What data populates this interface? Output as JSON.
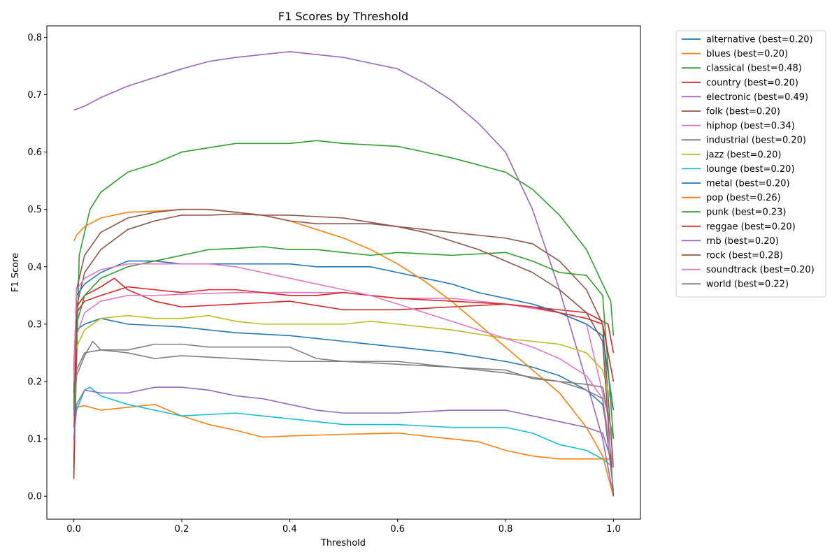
{
  "chart_data": {
    "type": "line",
    "title": "F1 Scores by Threshold",
    "xlabel": "Threshold",
    "ylabel": "F1 Score",
    "xlim": [
      -0.05,
      1.05
    ],
    "ylim": [
      -0.04,
      0.82
    ],
    "xticks": [
      0.0,
      0.2,
      0.4,
      0.6,
      0.8,
      1.0
    ],
    "xtick_labels": [
      "0.0",
      "0.2",
      "0.4",
      "0.6",
      "0.8",
      "1.0"
    ],
    "yticks": [
      0.0,
      0.1,
      0.2,
      0.3,
      0.4,
      0.5,
      0.6,
      0.7,
      0.8
    ],
    "ytick_labels": [
      "0.0",
      "0.1",
      "0.2",
      "0.3",
      "0.4",
      "0.5",
      "0.6",
      "0.7",
      "0.8"
    ],
    "grid": false,
    "legend_placement": "outside-top-right",
    "series": [
      {
        "name": "alternative (best=0.20)",
        "color": "#1f77b4",
        "x": [
          0.0,
          0.005,
          0.02,
          0.05,
          0.1,
          0.2,
          0.3,
          0.4,
          0.5,
          0.6,
          0.7,
          0.8,
          0.85,
          0.9,
          0.95,
          0.98,
          1.0
        ],
        "y": [
          0.15,
          0.29,
          0.3,
          0.31,
          0.3,
          0.295,
          0.285,
          0.28,
          0.27,
          0.26,
          0.25,
          0.235,
          0.225,
          0.21,
          0.185,
          0.16,
          0.05
        ]
      },
      {
        "name": "blues (best=0.20)",
        "color": "#ff7f0e",
        "x": [
          0.0,
          0.005,
          0.02,
          0.05,
          0.1,
          0.15,
          0.2,
          0.25,
          0.3,
          0.35,
          0.4,
          0.5,
          0.6,
          0.7,
          0.75,
          0.8,
          0.85,
          0.9,
          1.0
        ],
        "y": [
          0.15,
          0.155,
          0.158,
          0.15,
          0.155,
          0.16,
          0.14,
          0.125,
          0.115,
          0.103,
          0.105,
          0.108,
          0.11,
          0.1,
          0.095,
          0.08,
          0.07,
          0.065,
          0.065
        ]
      },
      {
        "name": "classical (best=0.48)",
        "color": "#2ca02c",
        "x": [
          0.0,
          0.01,
          0.03,
          0.05,
          0.1,
          0.15,
          0.2,
          0.3,
          0.4,
          0.45,
          0.5,
          0.6,
          0.7,
          0.8,
          0.85,
          0.9,
          0.95,
          0.98,
          0.995,
          1.0
        ],
        "y": [
          0.04,
          0.42,
          0.5,
          0.53,
          0.565,
          0.58,
          0.6,
          0.615,
          0.615,
          0.62,
          0.615,
          0.61,
          0.59,
          0.565,
          0.535,
          0.49,
          0.43,
          0.37,
          0.34,
          0.28
        ]
      },
      {
        "name": "country (best=0.20)",
        "color": "#d62728",
        "x": [
          0.0,
          0.005,
          0.02,
          0.05,
          0.075,
          0.1,
          0.15,
          0.2,
          0.3,
          0.4,
          0.5,
          0.6,
          0.7,
          0.8,
          0.9,
          0.95,
          0.99,
          1.0
        ],
        "y": [
          0.05,
          0.33,
          0.35,
          0.365,
          0.38,
          0.36,
          0.34,
          0.33,
          0.335,
          0.34,
          0.325,
          0.325,
          0.33,
          0.335,
          0.325,
          0.32,
          0.3,
          0.25
        ]
      },
      {
        "name": "electronic (best=0.49)",
        "color": "#9467bd",
        "x": [
          0.0,
          0.02,
          0.05,
          0.1,
          0.15,
          0.2,
          0.25,
          0.3,
          0.35,
          0.4,
          0.45,
          0.5,
          0.55,
          0.6,
          0.65,
          0.7,
          0.75,
          0.8,
          0.85,
          0.9,
          0.95,
          0.98,
          1.0
        ],
        "y": [
          0.673,
          0.68,
          0.695,
          0.715,
          0.73,
          0.745,
          0.758,
          0.765,
          0.77,
          0.775,
          0.77,
          0.765,
          0.755,
          0.745,
          0.72,
          0.69,
          0.65,
          0.6,
          0.5,
          0.36,
          0.2,
          0.1,
          0.0
        ]
      },
      {
        "name": "folk (best=0.20)",
        "color": "#8c564b",
        "x": [
          0.0,
          0.005,
          0.02,
          0.05,
          0.1,
          0.15,
          0.2,
          0.25,
          0.3,
          0.35,
          0.4,
          0.5,
          0.6,
          0.7,
          0.8,
          0.85,
          0.9,
          0.95,
          0.98,
          1.0
        ],
        "y": [
          0.16,
          0.33,
          0.39,
          0.43,
          0.465,
          0.48,
          0.49,
          0.49,
          0.492,
          0.49,
          0.49,
          0.485,
          0.47,
          0.46,
          0.45,
          0.44,
          0.41,
          0.36,
          0.3,
          0.05
        ]
      },
      {
        "name": "hiphop (best=0.34)",
        "color": "#e377c2",
        "x": [
          0.0,
          0.005,
          0.02,
          0.05,
          0.1,
          0.15,
          0.2,
          0.3,
          0.4,
          0.5,
          0.6,
          0.7,
          0.8,
          0.9,
          0.95,
          1.0
        ],
        "y": [
          0.22,
          0.28,
          0.32,
          0.34,
          0.35,
          0.35,
          0.352,
          0.355,
          0.355,
          0.355,
          0.345,
          0.345,
          0.335,
          0.32,
          0.3,
          0.1
        ]
      },
      {
        "name": "industrial (best=0.20)",
        "color": "#7f7f7f",
        "x": [
          0.0,
          0.005,
          0.02,
          0.05,
          0.1,
          0.15,
          0.2,
          0.3,
          0.4,
          0.5,
          0.6,
          0.7,
          0.8,
          0.9,
          0.95,
          0.98,
          1.0
        ],
        "y": [
          0.12,
          0.22,
          0.25,
          0.255,
          0.25,
          0.24,
          0.245,
          0.24,
          0.235,
          0.235,
          0.23,
          0.225,
          0.215,
          0.2,
          0.195,
          0.19,
          0.1
        ]
      },
      {
        "name": "jazz (best=0.20)",
        "color": "#bcbd22",
        "x": [
          0.0,
          0.005,
          0.02,
          0.05,
          0.1,
          0.15,
          0.2,
          0.25,
          0.3,
          0.35,
          0.4,
          0.45,
          0.5,
          0.55,
          0.6,
          0.7,
          0.8,
          0.85,
          0.9,
          0.95,
          0.98,
          1.0
        ],
        "y": [
          0.24,
          0.26,
          0.29,
          0.31,
          0.315,
          0.31,
          0.31,
          0.315,
          0.305,
          0.3,
          0.3,
          0.3,
          0.3,
          0.305,
          0.3,
          0.29,
          0.275,
          0.27,
          0.265,
          0.25,
          0.22,
          0.15
        ]
      },
      {
        "name": "lounge (best=0.20)",
        "color": "#17becf",
        "x": [
          0.0,
          0.005,
          0.02,
          0.03,
          0.05,
          0.1,
          0.15,
          0.2,
          0.3,
          0.4,
          0.5,
          0.6,
          0.7,
          0.8,
          0.85,
          0.9,
          0.95,
          0.98,
          1.0
        ],
        "y": [
          0.1,
          0.15,
          0.185,
          0.19,
          0.175,
          0.16,
          0.15,
          0.14,
          0.145,
          0.135,
          0.125,
          0.125,
          0.12,
          0.12,
          0.11,
          0.09,
          0.08,
          0.065,
          0.05
        ]
      },
      {
        "name": "metal (best=0.20)",
        "color": "#1f77b4",
        "x": [
          0.0,
          0.005,
          0.02,
          0.05,
          0.1,
          0.15,
          0.2,
          0.25,
          0.3,
          0.35,
          0.4,
          0.45,
          0.5,
          0.55,
          0.6,
          0.65,
          0.7,
          0.75,
          0.8,
          0.85,
          0.9,
          0.95,
          0.98,
          1.0
        ],
        "y": [
          0.22,
          0.35,
          0.37,
          0.39,
          0.41,
          0.41,
          0.405,
          0.405,
          0.405,
          0.405,
          0.405,
          0.4,
          0.4,
          0.4,
          0.39,
          0.38,
          0.37,
          0.355,
          0.345,
          0.335,
          0.32,
          0.3,
          0.28,
          0.15
        ]
      },
      {
        "name": "pop (best=0.26)",
        "color": "#ff7f0e",
        "x": [
          0.0,
          0.005,
          0.02,
          0.05,
          0.1,
          0.15,
          0.2,
          0.25,
          0.3,
          0.35,
          0.4,
          0.45,
          0.5,
          0.55,
          0.6,
          0.65,
          0.7,
          0.75,
          0.8,
          0.85,
          0.9,
          0.95,
          0.98,
          1.0
        ],
        "y": [
          0.445,
          0.455,
          0.47,
          0.485,
          0.495,
          0.497,
          0.5,
          0.5,
          0.495,
          0.49,
          0.48,
          0.465,
          0.45,
          0.43,
          0.405,
          0.375,
          0.34,
          0.3,
          0.26,
          0.22,
          0.18,
          0.12,
          0.07,
          0.0
        ]
      },
      {
        "name": "punk (best=0.23)",
        "color": "#2ca02c",
        "x": [
          0.0,
          0.005,
          0.02,
          0.05,
          0.1,
          0.15,
          0.2,
          0.25,
          0.3,
          0.35,
          0.4,
          0.45,
          0.5,
          0.55,
          0.6,
          0.7,
          0.8,
          0.85,
          0.9,
          0.95,
          0.98,
          1.0
        ],
        "y": [
          0.15,
          0.3,
          0.35,
          0.38,
          0.4,
          0.41,
          0.42,
          0.43,
          0.432,
          0.435,
          0.43,
          0.43,
          0.425,
          0.42,
          0.425,
          0.42,
          0.425,
          0.41,
          0.39,
          0.385,
          0.35,
          0.1
        ]
      },
      {
        "name": "reggae (best=0.20)",
        "color": "#d62728",
        "x": [
          0.0,
          0.005,
          0.02,
          0.05,
          0.1,
          0.15,
          0.2,
          0.25,
          0.3,
          0.35,
          0.4,
          0.45,
          0.5,
          0.55,
          0.6,
          0.7,
          0.8,
          0.85,
          0.9,
          0.95,
          0.98,
          1.0
        ],
        "y": [
          0.03,
          0.32,
          0.34,
          0.35,
          0.365,
          0.36,
          0.355,
          0.36,
          0.36,
          0.355,
          0.35,
          0.35,
          0.355,
          0.35,
          0.345,
          0.34,
          0.335,
          0.33,
          0.32,
          0.31,
          0.3,
          0.2
        ]
      },
      {
        "name": "rnb (best=0.20)",
        "color": "#9467bd",
        "x": [
          0.0,
          0.005,
          0.02,
          0.05,
          0.1,
          0.15,
          0.2,
          0.25,
          0.3,
          0.35,
          0.4,
          0.45,
          0.5,
          0.6,
          0.7,
          0.8,
          0.85,
          0.9,
          0.95,
          0.98,
          1.0
        ],
        "y": [
          0.1,
          0.16,
          0.185,
          0.18,
          0.18,
          0.19,
          0.19,
          0.185,
          0.175,
          0.17,
          0.16,
          0.15,
          0.145,
          0.145,
          0.15,
          0.15,
          0.14,
          0.13,
          0.12,
          0.11,
          0.05
        ]
      },
      {
        "name": "rock (best=0.28)",
        "color": "#8c564b",
        "x": [
          0.0,
          0.005,
          0.02,
          0.05,
          0.1,
          0.15,
          0.2,
          0.25,
          0.3,
          0.35,
          0.4,
          0.45,
          0.5,
          0.55,
          0.6,
          0.65,
          0.7,
          0.75,
          0.8,
          0.85,
          0.9,
          0.95,
          0.98,
          1.0
        ],
        "y": [
          0.18,
          0.36,
          0.42,
          0.46,
          0.485,
          0.495,
          0.5,
          0.5,
          0.495,
          0.49,
          0.48,
          0.475,
          0.475,
          0.475,
          0.47,
          0.46,
          0.445,
          0.43,
          0.41,
          0.39,
          0.36,
          0.32,
          0.27,
          0.0
        ]
      },
      {
        "name": "soundtrack (best=0.20)",
        "color": "#e377c2",
        "x": [
          0.0,
          0.005,
          0.02,
          0.05,
          0.1,
          0.15,
          0.2,
          0.25,
          0.3,
          0.35,
          0.4,
          0.45,
          0.5,
          0.55,
          0.6,
          0.65,
          0.7,
          0.75,
          0.8,
          0.85,
          0.9,
          0.95,
          0.98,
          1.0
        ],
        "y": [
          0.2,
          0.36,
          0.38,
          0.395,
          0.405,
          0.405,
          0.405,
          0.405,
          0.4,
          0.39,
          0.38,
          0.37,
          0.36,
          0.35,
          0.335,
          0.32,
          0.305,
          0.29,
          0.275,
          0.26,
          0.24,
          0.21,
          0.17,
          0.05
        ]
      },
      {
        "name": "world (best=0.22)",
        "color": "#7f7f7f",
        "x": [
          0.0,
          0.005,
          0.02,
          0.035,
          0.05,
          0.1,
          0.15,
          0.2,
          0.25,
          0.3,
          0.35,
          0.4,
          0.45,
          0.5,
          0.55,
          0.6,
          0.7,
          0.8,
          0.85,
          0.9,
          0.95,
          0.98,
          1.0
        ],
        "y": [
          0.14,
          0.21,
          0.245,
          0.27,
          0.255,
          0.255,
          0.265,
          0.265,
          0.26,
          0.26,
          0.26,
          0.26,
          0.24,
          0.235,
          0.235,
          0.235,
          0.225,
          0.22,
          0.205,
          0.2,
          0.185,
          0.17,
          0.01
        ]
      }
    ]
  }
}
